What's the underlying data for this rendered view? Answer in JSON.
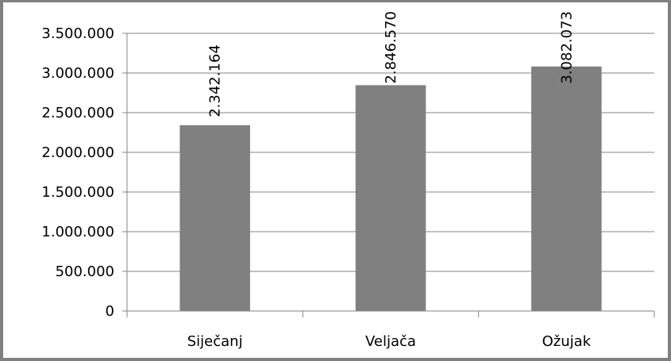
{
  "chart_data": {
    "type": "bar",
    "categories": [
      "Siječanj",
      "Veljača",
      "Ožujak"
    ],
    "values": [
      2342164,
      2846570,
      3082073
    ],
    "data_labels": [
      "2.342.164",
      "2.846.570",
      "3.082.073"
    ],
    "ylim": [
      0,
      3500000
    ],
    "y_ticks": [
      0,
      500000,
      1000000,
      1500000,
      2000000,
      2500000,
      3000000,
      3500000
    ],
    "y_tick_labels": [
      "0",
      "500.000",
      "1.000.000",
      "1.500.000",
      "2.000.000",
      "2.500.000",
      "3.000.000",
      "3.500.000"
    ],
    "grid": true,
    "legend": "none",
    "bar_color": "#808080",
    "grid_color": "#868686",
    "frame_color": "#808080"
  }
}
